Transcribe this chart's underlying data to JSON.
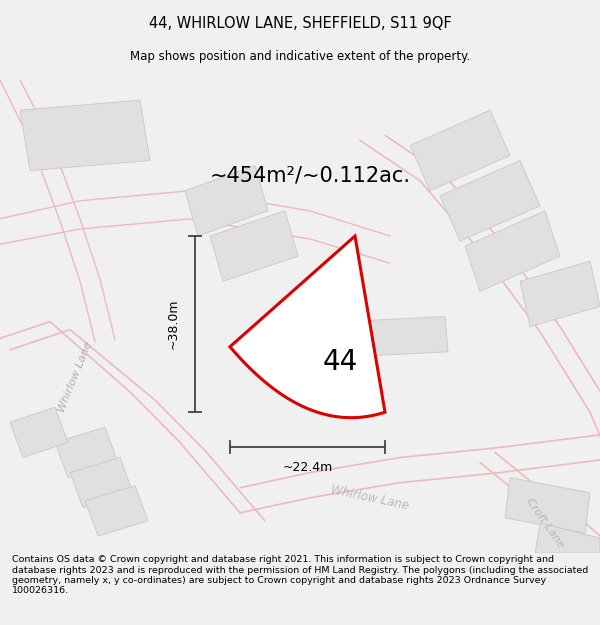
{
  "title_line1": "44, WHIRLOW LANE, SHEFFIELD, S11 9QF",
  "title_line2": "Map shows position and indicative extent of the property.",
  "area_label": "~454m²/~0.112ac.",
  "number_label": "44",
  "dim_width": "~22.4m",
  "dim_height": "~38.0m",
  "street_label_left": "Whirlow Lane",
  "street_label_bottom": "Whirlow Lane",
  "street_label_right": "Croft Lane",
  "footer_text": "Contains OS data © Crown copyright and database right 2021. This information is subject to Crown copyright and database rights 2023 and is reproduced with the permission of HM Land Registry. The polygons (including the associated geometry, namely x, y co-ordinates) are subject to Crown copyright and database rights 2023 Ordnance Survey 100026316.",
  "bg_color": "#f0f0f0",
  "map_bg_color": "#ffffff",
  "plot_color": "#dd0000",
  "road_color": "#f0b8bc",
  "road_lw_main": 1.2,
  "building_color": "#e0e0e0",
  "building_edge_color": "#c8c8c8"
}
